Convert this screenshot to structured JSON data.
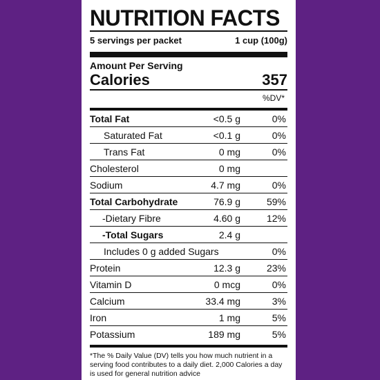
{
  "title": "NUTRITION FACTS",
  "servings_per_packet": "5 servings per packet",
  "serving_size": "1 cup (100g)",
  "amount_per_serving": "Amount Per Serving",
  "calories": {
    "label": "Calories",
    "value": "357"
  },
  "dv_header": "%DV*",
  "nutrients": [
    {
      "name": "Total Fat",
      "amount": "<0.5 g",
      "dv": "0%"
    },
    {
      "name": "Saturated Fat",
      "amount": "<0.1 g",
      "dv": "0%"
    },
    {
      "name": "Trans Fat",
      "amount": "0 mg",
      "dv": "0%"
    },
    {
      "name": "Cholesterol",
      "amount": "0 mg",
      "dv": ""
    },
    {
      "name": "Sodium",
      "amount": "4.7 mg",
      "dv": "0%"
    },
    {
      "name": "Total Carbohydrate",
      "amount": "76.9 g",
      "dv": "59%"
    },
    {
      "name": "-Dietary Fibre",
      "amount": "4.60 g",
      "dv": "12%"
    },
    {
      "name": "-Total Sugars",
      "amount": "2.4 g",
      "dv": ""
    },
    {
      "name": "Includes 0 g added Sugars",
      "dv": "0%"
    },
    {
      "name": "Protein",
      "amount": "12.3 g",
      "dv": "23%"
    },
    {
      "name": "Vitamin D",
      "amount": "0 mcg",
      "dv": "0%"
    },
    {
      "name": "Calcium",
      "amount": "33.4 mg",
      "dv": "3%"
    },
    {
      "name": "Iron",
      "amount": "1 mg",
      "dv": "5%"
    },
    {
      "name": "Potassium",
      "amount": "189 mg",
      "dv": "5%"
    }
  ],
  "footnote": "*The % Daily Value (DV) tells you how much nutrient in a serving food contributes to a daily diet. 2,000 Calories a day is used for general nutrition advice",
  "colors": {
    "background": "#5e2183",
    "label": "#ffffff",
    "ink": "#111111"
  }
}
